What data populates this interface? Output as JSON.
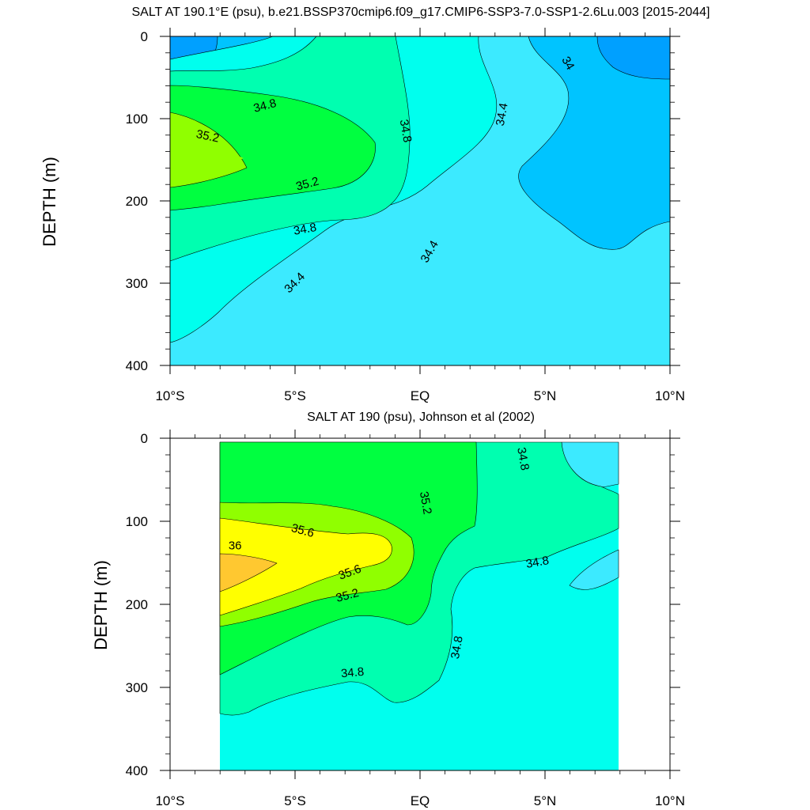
{
  "chart_data": [
    {
      "type": "contour",
      "title": "SALT AT 190.1°E (psu), b.e21.BSSP370cmip6.f09_g17.CMIP6-SSP3-7.0-SSP1-2.6Lu.003 [2015-2044]",
      "xlabel": "",
      "ylabel": "DEPTH (m)",
      "xlim": [
        -10,
        10
      ],
      "ylim": [
        400,
        0
      ],
      "x_ticks": [
        -10,
        -5,
        0,
        5,
        10
      ],
      "x_tick_labels": [
        "10°S",
        "5°S",
        "EQ",
        "5°N",
        "10°N"
      ],
      "y_ticks": [
        0,
        100,
        200,
        300,
        400
      ],
      "y_tick_labels": [
        "0",
        "100",
        "200",
        "300",
        "400"
      ],
      "contour_labels": [
        {
          "text": "34.8",
          "x": -6.2,
          "depth": 85,
          "angle": -15
        },
        {
          "text": "35.2",
          "x": -8.5,
          "depth": 122,
          "angle": 12
        },
        {
          "text": "35.2",
          "x": -4.5,
          "depth": 180,
          "angle": -15
        },
        {
          "text": "34.8",
          "x": -4.6,
          "depth": 235,
          "angle": -10
        },
        {
          "text": "34.4",
          "x": -5.0,
          "depth": 300,
          "angle": -45
        },
        {
          "text": "34.8",
          "x": -0.6,
          "depth": 115,
          "angle": 80
        },
        {
          "text": "34.4",
          "x": 0.4,
          "depth": 262,
          "angle": -60
        },
        {
          "text": "34.4",
          "x": 3.3,
          "depth": 95,
          "angle": -80
        },
        {
          "text": "34",
          "x": 5.9,
          "depth": 33,
          "angle": 60
        }
      ],
      "fill_colors": [
        "#00a0ff",
        "#00c4ff",
        "#3ceaff",
        "#00ffee",
        "#00ffb0",
        "#00ff40",
        "#90ff00"
      ]
    },
    {
      "type": "contour",
      "title": "SALT AT 190 (psu), Johnson et al (2002)",
      "xlabel": "",
      "ylabel": "DEPTH (m)",
      "xlim": [
        -10,
        10
      ],
      "ylim": [
        400,
        0
      ],
      "x_ticks": [
        -10,
        -5,
        0,
        5,
        10
      ],
      "x_tick_labels": [
        "10°S",
        "5°S",
        "EQ",
        "5°N",
        "10°N"
      ],
      "y_ticks": [
        0,
        100,
        200,
        300,
        400
      ],
      "y_tick_labels": [
        "0",
        "100",
        "200",
        "300",
        "400"
      ],
      "data_extent_x": [
        -8,
        8
      ],
      "contour_labels": [
        {
          "text": "35.6",
          "x": -4.7,
          "depth": 112,
          "angle": 15
        },
        {
          "text": "36",
          "x": -7.4,
          "depth": 130,
          "angle": 0
        },
        {
          "text": "35.6",
          "x": -2.8,
          "depth": 162,
          "angle": -20
        },
        {
          "text": "35.2",
          "x": -2.9,
          "depth": 190,
          "angle": -15
        },
        {
          "text": "35.2",
          "x": 0.2,
          "depth": 78,
          "angle": 80
        },
        {
          "text": "34.8",
          "x": 4.1,
          "depth": 25,
          "angle": 80
        },
        {
          "text": "34.8",
          "x": 4.7,
          "depth": 150,
          "angle": -10
        },
        {
          "text": "34.8",
          "x": 1.5,
          "depth": 252,
          "angle": -80
        },
        {
          "text": "34.8",
          "x": -2.7,
          "depth": 283,
          "angle": -5
        }
      ],
      "fill_colors": [
        "#00ffee",
        "#00ffb0",
        "#00ff40",
        "#90ff00",
        "#ffff00",
        "#ffc830"
      ]
    }
  ]
}
